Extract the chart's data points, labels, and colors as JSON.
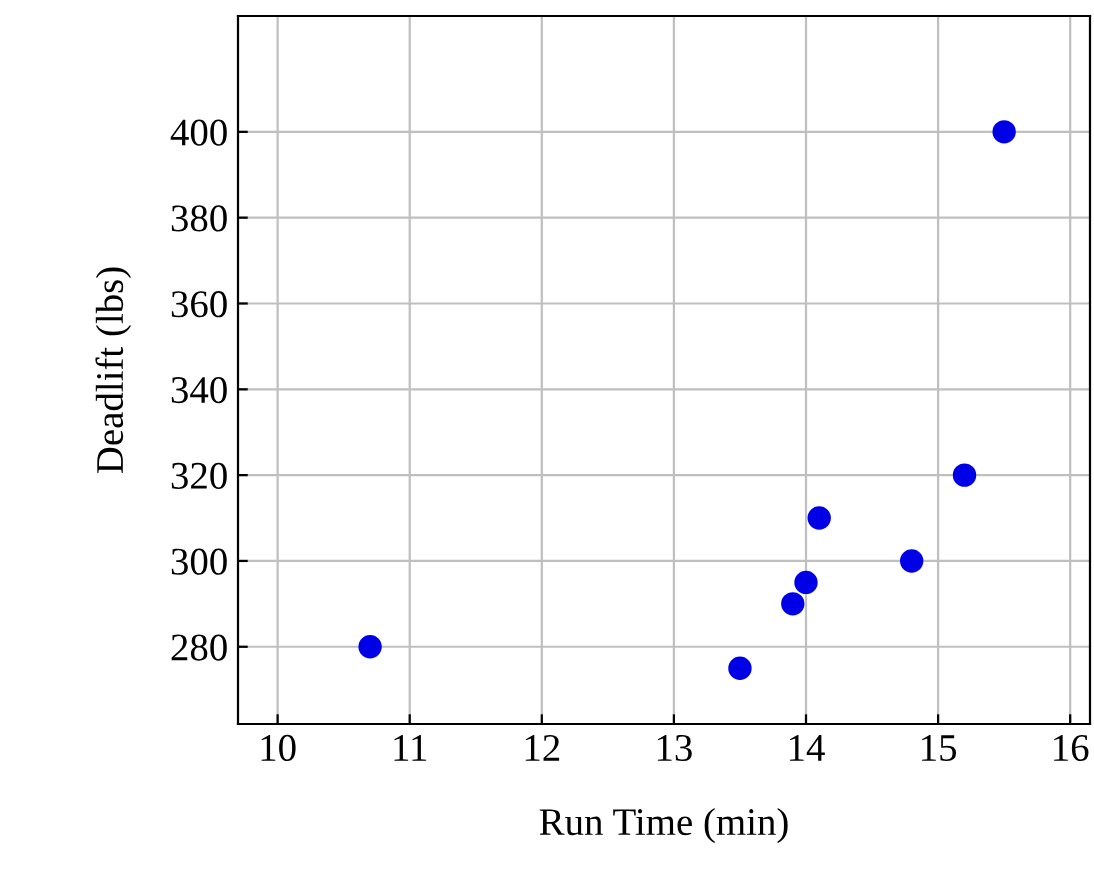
{
  "chart_data": {
    "type": "scatter",
    "xlabel": "Run Time (min)",
    "ylabel": "Deadlift (lbs)",
    "x": [
      10.7,
      13.5,
      13.9,
      14.0,
      14.1,
      14.8,
      15.2,
      15.5
    ],
    "series": [
      {
        "color": "#0000e6",
        "values": [
          280,
          275,
          290,
          295,
          310,
          300,
          320,
          400
        ]
      }
    ],
    "xlim": [
      9.7,
      16.15
    ],
    "ylim": [
      262,
      427
    ],
    "xticks": [
      10,
      11,
      12,
      13,
      14,
      15,
      16
    ],
    "yticks": [
      280,
      300,
      320,
      340,
      360,
      380,
      400
    ],
    "grid": true,
    "marker": "circle"
  }
}
